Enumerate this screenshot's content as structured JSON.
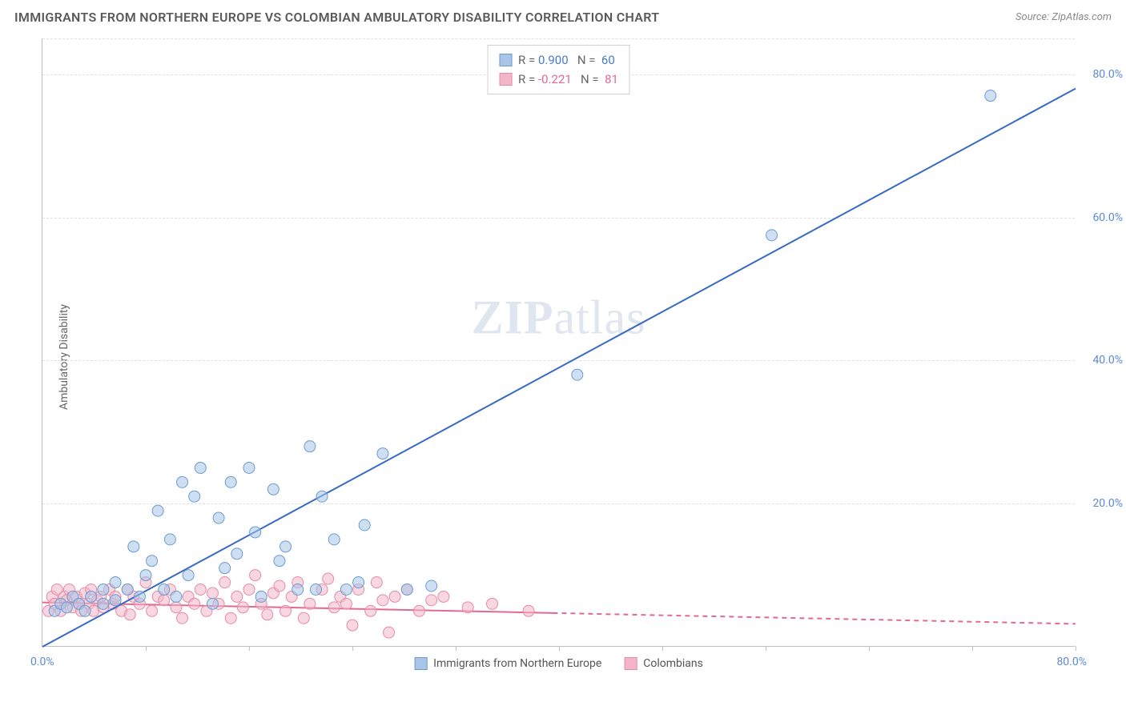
{
  "title": "IMMIGRANTS FROM NORTHERN EUROPE VS COLOMBIAN AMBULATORY DISABILITY CORRELATION CHART",
  "source": "Source: ZipAtlas.com",
  "ylabel": "Ambulatory Disability",
  "watermark_prefix": "ZIP",
  "watermark_suffix": "atlas",
  "chart": {
    "type": "scatter",
    "xlim": [
      0,
      85
    ],
    "ylim": [
      0,
      85
    ],
    "ytick_values": [
      20,
      40,
      60,
      80
    ],
    "ytick_labels": [
      "20.0%",
      "40.0%",
      "60.0%",
      "80.0%"
    ],
    "xtick_left": "0.0%",
    "xtick_right": "80.0%",
    "xtick_divisions": 10,
    "background_color": "#ffffff",
    "grid_color": "#e0e0e0",
    "marker_radius": 7,
    "marker_opacity": 0.55,
    "line_width": 2,
    "series": [
      {
        "name": "Immigrants from Northern Europe",
        "color_fill": "#a8c5e8",
        "color_stroke": "#6b9bd1",
        "line_color": "#3769c4",
        "r_value": "0.900",
        "n_value": "60",
        "trend": {
          "x1": 0,
          "y1": 0,
          "x2": 85,
          "y2": 78,
          "dashed_after_x": null
        },
        "points": [
          [
            1,
            5
          ],
          [
            1.5,
            6
          ],
          [
            2,
            5.5
          ],
          [
            2.5,
            7
          ],
          [
            3,
            6
          ],
          [
            3.5,
            5
          ],
          [
            4,
            7
          ],
          [
            5,
            6
          ],
          [
            5,
            8
          ],
          [
            6,
            6.5
          ],
          [
            6,
            9
          ],
          [
            7,
            8
          ],
          [
            7.5,
            14
          ],
          [
            8,
            7
          ],
          [
            8.5,
            10
          ],
          [
            9,
            12
          ],
          [
            9.5,
            19
          ],
          [
            10,
            8
          ],
          [
            10.5,
            15
          ],
          [
            11,
            7
          ],
          [
            11.5,
            23
          ],
          [
            12,
            10
          ],
          [
            12.5,
            21
          ],
          [
            13,
            25
          ],
          [
            14,
            6
          ],
          [
            14.5,
            18
          ],
          [
            15,
            11
          ],
          [
            15.5,
            23
          ],
          [
            16,
            13
          ],
          [
            17,
            25
          ],
          [
            17.5,
            16
          ],
          [
            18,
            7
          ],
          [
            19,
            22
          ],
          [
            19.5,
            12
          ],
          [
            20,
            14
          ],
          [
            21,
            8
          ],
          [
            22,
            28
          ],
          [
            22.5,
            8
          ],
          [
            23,
            21
          ],
          [
            24,
            15
          ],
          [
            25,
            8
          ],
          [
            26,
            9
          ],
          [
            26.5,
            17
          ],
          [
            28,
            27
          ],
          [
            30,
            8
          ],
          [
            32,
            8.5
          ],
          [
            44,
            38
          ],
          [
            60,
            57.5
          ],
          [
            78,
            77
          ]
        ]
      },
      {
        "name": "Colombians",
        "color_fill": "#f3b6c8",
        "color_stroke": "#e58ba8",
        "line_color": "#e06b8f",
        "r_value": "-0.221",
        "n_value": "81",
        "trend": {
          "x1": 0,
          "y1": 6.2,
          "x2": 85,
          "y2": 3.2,
          "dashed_after_x": 42
        },
        "points": [
          [
            0.5,
            5
          ],
          [
            0.8,
            7
          ],
          [
            1,
            6
          ],
          [
            1.2,
            8
          ],
          [
            1.5,
            5
          ],
          [
            1.8,
            7
          ],
          [
            2,
            6.5
          ],
          [
            2.2,
            8
          ],
          [
            2.5,
            5.5
          ],
          [
            2.8,
            7
          ],
          [
            3,
            6
          ],
          [
            3.2,
            5
          ],
          [
            3.5,
            7.5
          ],
          [
            3.8,
            6
          ],
          [
            4,
            8
          ],
          [
            4.2,
            5
          ],
          [
            4.5,
            6.5
          ],
          [
            4.8,
            7
          ],
          [
            5,
            5.5
          ],
          [
            5.5,
            8
          ],
          [
            5.8,
            6
          ],
          [
            6,
            7
          ],
          [
            6.5,
            5
          ],
          [
            7,
            8
          ],
          [
            7.2,
            4.5
          ],
          [
            7.5,
            7
          ],
          [
            8,
            6
          ],
          [
            8.5,
            9
          ],
          [
            9,
            5
          ],
          [
            9.5,
            7
          ],
          [
            10,
            6.5
          ],
          [
            10.5,
            8
          ],
          [
            11,
            5.5
          ],
          [
            11.5,
            4
          ],
          [
            12,
            7
          ],
          [
            12.5,
            6
          ],
          [
            13,
            8
          ],
          [
            13.5,
            5
          ],
          [
            14,
            7.5
          ],
          [
            14.5,
            6
          ],
          [
            15,
            9
          ],
          [
            15.5,
            4
          ],
          [
            16,
            7
          ],
          [
            16.5,
            5.5
          ],
          [
            17,
            8
          ],
          [
            17.5,
            10
          ],
          [
            18,
            6
          ],
          [
            18.5,
            4.5
          ],
          [
            19,
            7.5
          ],
          [
            19.5,
            8.5
          ],
          [
            20,
            5
          ],
          [
            20.5,
            7
          ],
          [
            21,
            9
          ],
          [
            21.5,
            4
          ],
          [
            22,
            6
          ],
          [
            23,
            8
          ],
          [
            23.5,
            9.5
          ],
          [
            24,
            5.5
          ],
          [
            24.5,
            7
          ],
          [
            25,
            6
          ],
          [
            25.5,
            3
          ],
          [
            26,
            8
          ],
          [
            27,
            5
          ],
          [
            27.5,
            9
          ],
          [
            28,
            6.5
          ],
          [
            28.5,
            2
          ],
          [
            29,
            7
          ],
          [
            30,
            8
          ],
          [
            31,
            5
          ],
          [
            32,
            6.5
          ],
          [
            33,
            7
          ],
          [
            35,
            5.5
          ],
          [
            37,
            6
          ],
          [
            40,
            5
          ]
        ]
      }
    ]
  },
  "bottom_legend": [
    {
      "label": "Immigrants from Northern Europe",
      "fill": "#a8c5e8",
      "stroke": "#6b9bd1"
    },
    {
      "label": "Colombians",
      "fill": "#f3b6c8",
      "stroke": "#e58ba8"
    }
  ]
}
